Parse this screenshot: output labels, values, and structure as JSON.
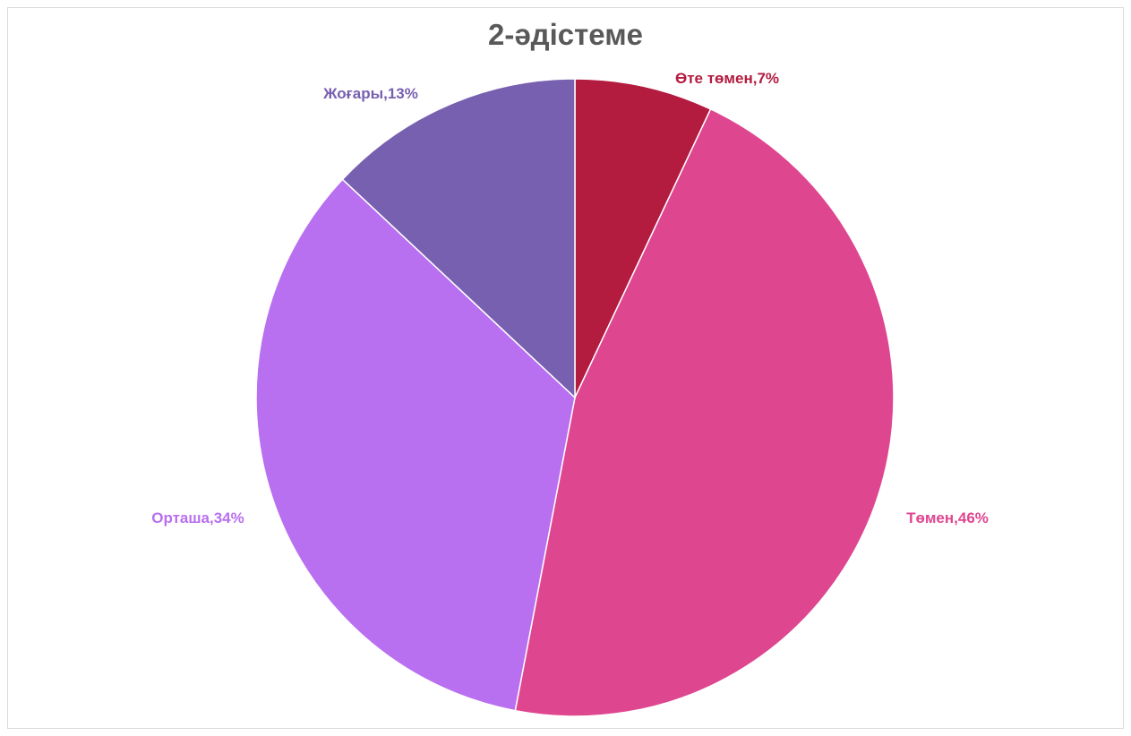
{
  "chart_data": {
    "type": "pie",
    "title": "2-әдістеме",
    "slices": [
      {
        "label": "Өте төмен,7%",
        "category": "Өте төмен",
        "value": 7,
        "color": "#b31b3f"
      },
      {
        "label": "Төмен,46%",
        "category": "Төмен",
        "value": 46,
        "color": "#df4690"
      },
      {
        "label": "Орташа,34%",
        "category": "Орташа",
        "value": 34,
        "color": "#b86ff0"
      },
      {
        "label": "Жоғары,13%",
        "category": "Жоғары",
        "value": 13,
        "color": "#7860b0"
      }
    ],
    "start_angle": "12 o'clock",
    "direction": "clockwise",
    "legend": "none",
    "data_labels": "outside"
  }
}
